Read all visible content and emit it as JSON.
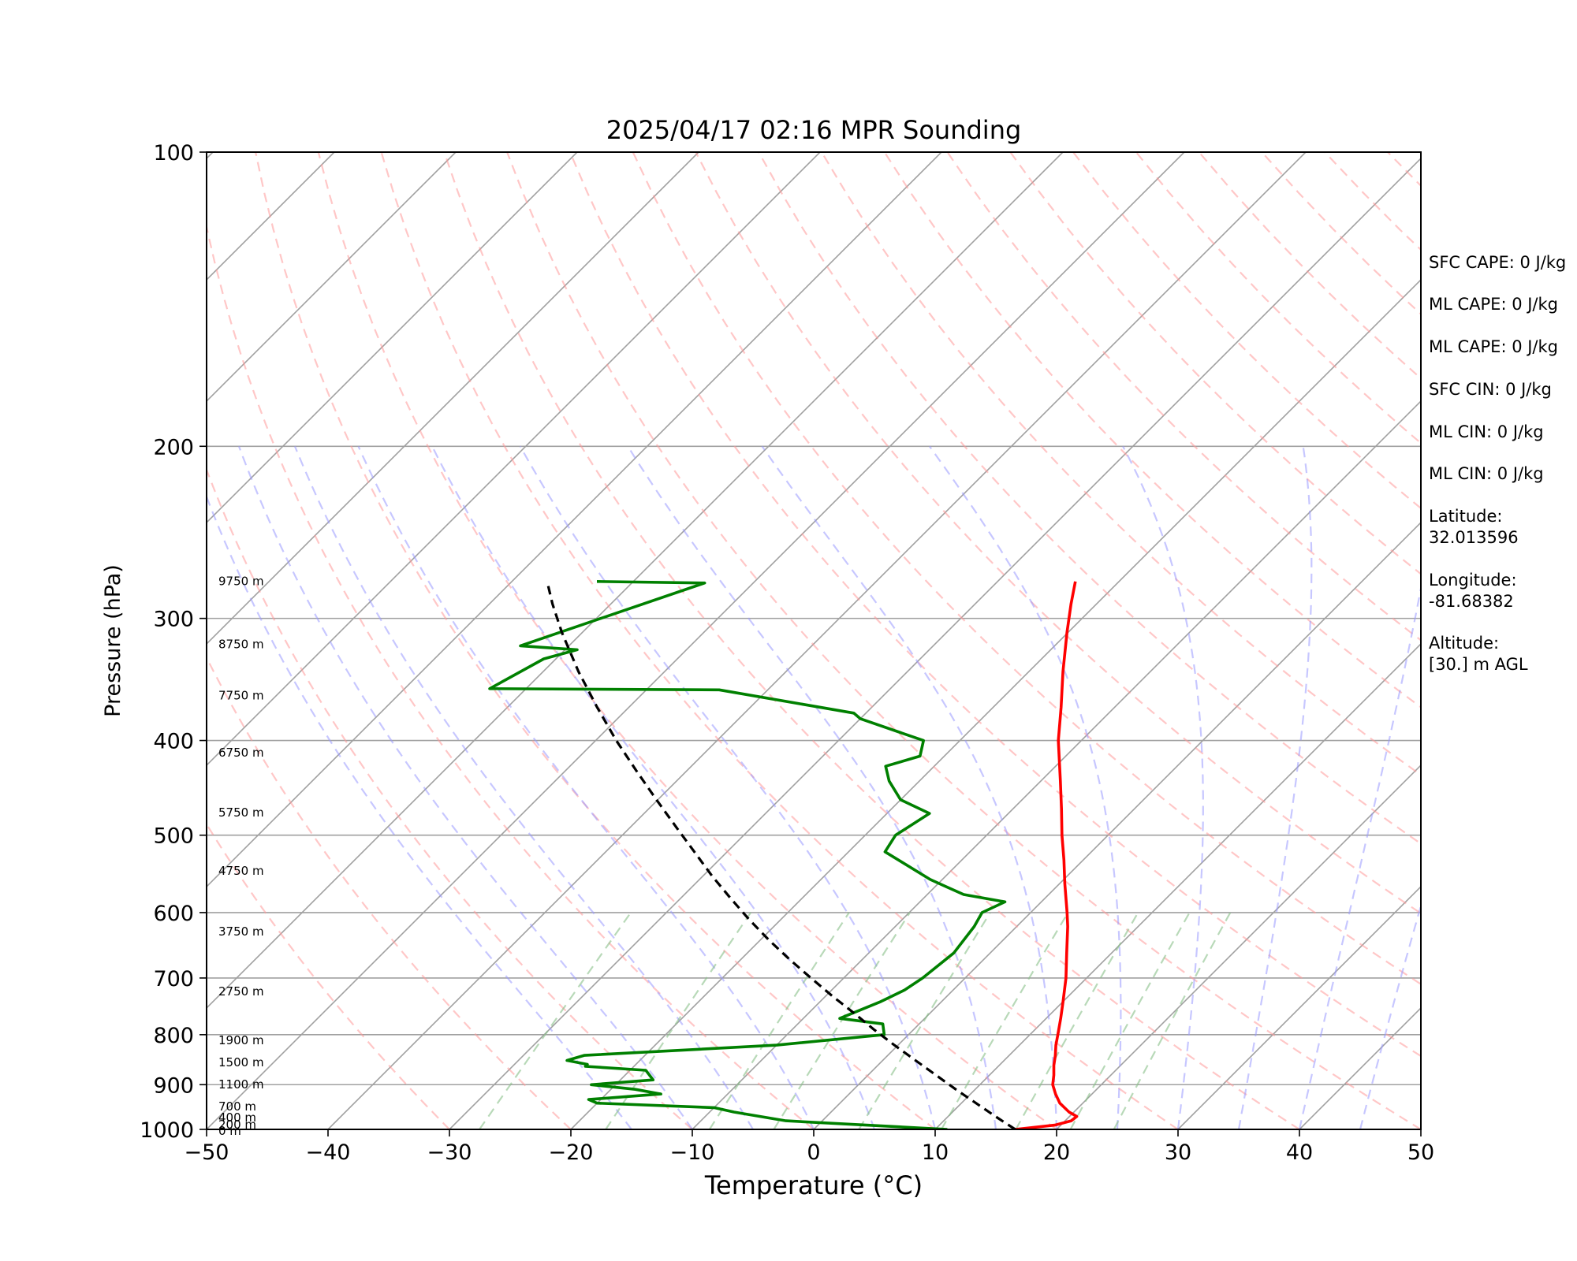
{
  "chart_data": {
    "type": "line",
    "title": "2025/04/17 02:16 MPR Sounding",
    "xlabel": "Temperature (°C)",
    "ylabel": "Pressure (hPa)",
    "xlim": [
      -50,
      50
    ],
    "ylim": [
      1000,
      100
    ],
    "y_scale": "log",
    "x_ticks": [
      "−50",
      "−40",
      "−30",
      "−20",
      "−10",
      "0",
      "10",
      "20",
      "30",
      "40",
      "50"
    ],
    "y_ticks": [
      "1000",
      "900",
      "800",
      "700",
      "600",
      "500",
      "400",
      "300",
      "200",
      "100"
    ],
    "grid": true,
    "skewed_isotherms": true,
    "colors": {
      "temperature": "#ff0000",
      "dewpoint": "#008000",
      "parcel": "#000000",
      "dry_adiabats": "#ff9999",
      "moist_adiabats": "#9999ff",
      "mixing_ratio": "#88c088",
      "isotherms": "#a0a0a0"
    },
    "series": [
      {
        "role": "temperature",
        "points": [
          [
            1000,
            16.6
          ],
          [
            990,
            19.5
          ],
          [
            980,
            20.5
          ],
          [
            970,
            20.6
          ],
          [
            960,
            19.6
          ],
          [
            940,
            18.1
          ],
          [
            920,
            17.0
          ],
          [
            900,
            16.0
          ],
          [
            880,
            15.3
          ],
          [
            860,
            14.5
          ],
          [
            840,
            13.8
          ],
          [
            820,
            13.0
          ],
          [
            800,
            12.3
          ],
          [
            770,
            11.2
          ],
          [
            740,
            10.0
          ],
          [
            700,
            8.3
          ],
          [
            660,
            6.3
          ],
          [
            620,
            4.2
          ],
          [
            600,
            3.0
          ],
          [
            560,
            0.4
          ],
          [
            530,
            -1.6
          ],
          [
            500,
            -3.8
          ],
          [
            470,
            -6.0
          ],
          [
            440,
            -8.4
          ],
          [
            400,
            -11.9
          ],
          [
            370,
            -14.4
          ],
          [
            340,
            -17.2
          ],
          [
            310,
            -20.1
          ],
          [
            290,
            -22.1
          ],
          [
            275,
            -23.6
          ]
        ]
      },
      {
        "role": "dewpoint",
        "points": [
          [
            1000,
            11.0
          ],
          [
            990,
            4.0
          ],
          [
            980,
            -3.0
          ],
          [
            960,
            -8.0
          ],
          [
            950,
            -10.0
          ],
          [
            940,
            -20.0
          ],
          [
            932,
            -21.0
          ],
          [
            920,
            -15.5
          ],
          [
            910,
            -18.0
          ],
          [
            900,
            -22.0
          ],
          [
            890,
            -17.3
          ],
          [
            870,
            -18.7
          ],
          [
            862,
            -24.0
          ],
          [
            858,
            -24.0
          ],
          [
            850,
            -26.0
          ],
          [
            840,
            -25.0
          ],
          [
            820,
            -10.0
          ],
          [
            800,
            -2.0
          ],
          [
            780,
            -3.0
          ],
          [
            770,
            -7.0
          ],
          [
            740,
            -5.0
          ],
          [
            720,
            -4.0
          ],
          [
            700,
            -3.5
          ],
          [
            660,
            -3.0
          ],
          [
            620,
            -3.5
          ],
          [
            600,
            -4.0
          ],
          [
            585,
            -3.0
          ],
          [
            575,
            -7.0
          ],
          [
            565,
            -9.0
          ],
          [
            555,
            -11.0
          ],
          [
            520,
            -17.0
          ],
          [
            500,
            -17.5
          ],
          [
            475,
            -16.5
          ],
          [
            460,
            -20.0
          ],
          [
            440,
            -22.5
          ],
          [
            425,
            -24.0
          ],
          [
            415,
            -22.0
          ],
          [
            400,
            -23.0
          ],
          [
            380,
            -30.0
          ],
          [
            375,
            -31.0
          ],
          [
            355,
            -44.0
          ],
          [
            354,
            -63.0
          ],
          [
            330,
            -61.0
          ],
          [
            323,
            -59.0
          ],
          [
            320,
            -64.0
          ],
          [
            276,
            -54.0
          ],
          [
            275,
            -63.0
          ]
        ]
      },
      {
        "role": "parcel",
        "points": [
          [
            1000,
            16.6
          ],
          [
            970,
            13.9
          ],
          [
            940,
            11.2
          ],
          [
            910,
            8.4
          ],
          [
            880,
            5.6
          ],
          [
            850,
            2.7
          ],
          [
            820,
            -0.3
          ],
          [
            790,
            -3.3
          ],
          [
            760,
            -6.3
          ],
          [
            730,
            -9.5
          ],
          [
            700,
            -12.7
          ],
          [
            670,
            -16.0
          ],
          [
            640,
            -19.3
          ],
          [
            610,
            -22.6
          ],
          [
            580,
            -25.9
          ],
          [
            550,
            -29.3
          ],
          [
            520,
            -32.7
          ],
          [
            490,
            -36.3
          ],
          [
            460,
            -40.1
          ],
          [
            430,
            -44.1
          ],
          [
            400,
            -48.3
          ],
          [
            370,
            -52.6
          ],
          [
            340,
            -57.1
          ],
          [
            310,
            -61.7
          ],
          [
            290,
            -64.8
          ],
          [
            275,
            -67.1
          ]
        ]
      }
    ],
    "height_labels": [
      {
        "p": 276,
        "text": "9750 m"
      },
      {
        "p": 320,
        "text": "8750 m"
      },
      {
        "p": 361,
        "text": "7750 m"
      },
      {
        "p": 413,
        "text": "6750 m"
      },
      {
        "p": 476,
        "text": "5750 m"
      },
      {
        "p": 546,
        "text": "4750 m"
      },
      {
        "p": 630,
        "text": "3750 m"
      },
      {
        "p": 725,
        "text": "2750 m"
      },
      {
        "p": 814,
        "text": "1900 m"
      },
      {
        "p": 857,
        "text": "1500 m"
      },
      {
        "p": 903,
        "text": "1100 m"
      },
      {
        "p": 951,
        "text": "700 m"
      },
      {
        "p": 976,
        "text": "400 m"
      },
      {
        "p": 993,
        "text": "200 m"
      },
      {
        "p": 1007,
        "text": "0 m"
      }
    ]
  },
  "stats": [
    "SFC CAPE: 0 J/kg",
    "ML CAPE: 0 J/kg",
    "ML CAPE: 0 J/kg",
    "SFC CIN: 0 J/kg",
    "ML CIN: 0 J/kg",
    "ML CIN: 0 J/kg"
  ],
  "location": {
    "latitude_label": "Latitude:",
    "latitude_value": "32.013596",
    "longitude_label": "Longitude:",
    "longitude_value": "-81.68382",
    "altitude_label": "Altitude:",
    "altitude_value": "[30.] m AGL"
  }
}
